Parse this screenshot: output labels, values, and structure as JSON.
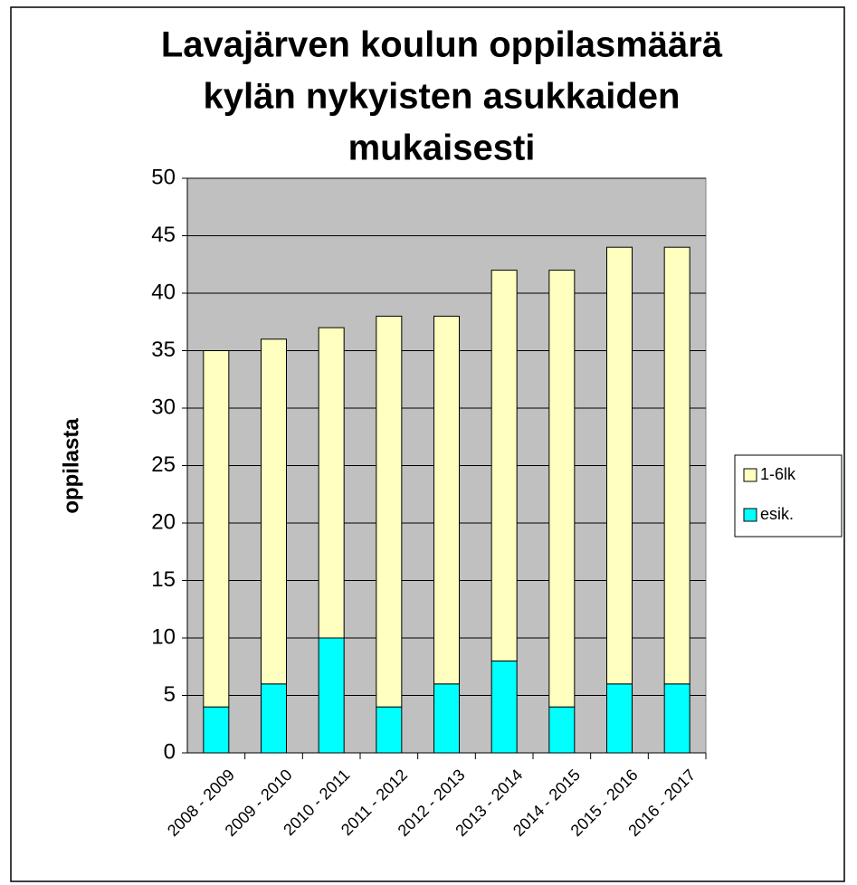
{
  "chart_data": {
    "type": "stacked_bar",
    "title": [
      "Lavajärven koulun oppilasmäärä",
      "kylän nykyisten asukkaiden",
      "mukaisesti"
    ],
    "y_label": "oppilasta",
    "categories": [
      "2008 - 2009",
      "2009 - 2010",
      "2010 - 2011",
      "2011 - 2012",
      "2012 - 2013",
      "2013 - 2014",
      "2014 - 2015",
      "2015 - 2016",
      "2016 - 2017"
    ],
    "series": [
      {
        "name": "esik.",
        "color": "#00ffff",
        "values": [
          4,
          6,
          10,
          4,
          6,
          8,
          4,
          6,
          6
        ]
      },
      {
        "name": "1-6lk",
        "color": "#ffffc0",
        "values": [
          31,
          30,
          27,
          34,
          32,
          34,
          38,
          38,
          38
        ]
      }
    ],
    "ylim": [
      0,
      50
    ],
    "yticks": [
      0,
      5,
      10,
      15,
      20,
      25,
      30,
      35,
      40,
      45,
      50
    ],
    "grid": true,
    "legend": "right",
    "plot_background": "#c0c0c0"
  }
}
